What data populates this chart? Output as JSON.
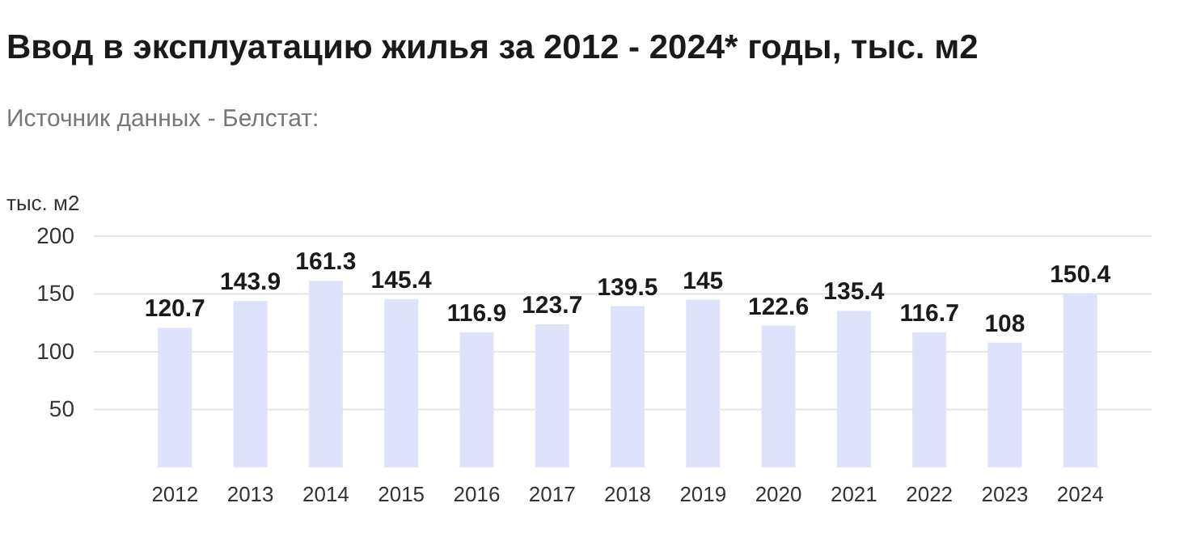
{
  "chart_data": {
    "type": "bar",
    "title": "Ввод в эксплуатацию жилья за 2012 - 2024* годы, тыс. м2",
    "subtitle": "Источник данных - Белстат:",
    "ylabel": "тыс. м2",
    "categories": [
      "2012",
      "2013",
      "2014",
      "2015",
      "2016",
      "2017",
      "2018",
      "2019",
      "2020",
      "2021",
      "2022",
      "2023",
      "2024"
    ],
    "values": [
      120.7,
      143.9,
      161.3,
      145.4,
      116.9,
      123.7,
      139.5,
      145,
      122.6,
      135.4,
      116.7,
      108,
      150.4
    ],
    "color": "#dee3fb",
    "ylim": [
      0,
      200
    ],
    "yticks": [
      50,
      100,
      150,
      200
    ],
    "grid": "y",
    "data_labels": true
  }
}
